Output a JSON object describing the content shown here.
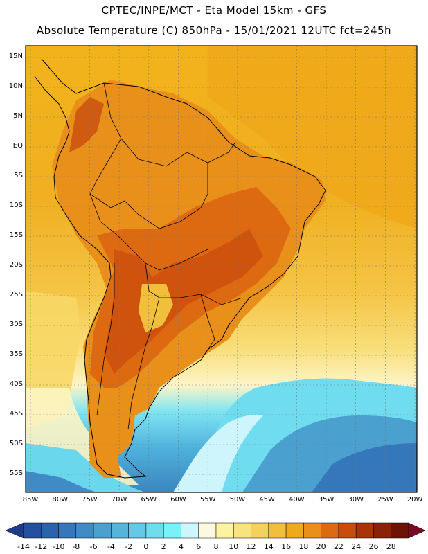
{
  "title_line1": "CPTEC/INPE/MCT -  Eta Model 15km - GFS",
  "title_line2": "Absolute Temperature (C) 850hPa - 15/01/2021 12UTC fct=245h",
  "variable": "Absolute Temperature",
  "units": "C",
  "level": "850hPa",
  "lat_labels": [
    "15N",
    "10N",
    "5N",
    "EQ",
    "5S",
    "10S",
    "15S",
    "20S",
    "25S",
    "30S",
    "35S",
    "40S",
    "45S",
    "50S",
    "55S"
  ],
  "lon_labels": [
    "85W",
    "80W",
    "75W",
    "70W",
    "65W",
    "60W",
    "55W",
    "50W",
    "45W",
    "40W",
    "35W",
    "30W",
    "25W",
    "20W"
  ],
  "colorbar": {
    "labels": [
      "-14",
      "-12",
      "-10",
      "-8",
      "-6",
      "-4",
      "-2",
      "0",
      "2",
      "4",
      "6",
      "8",
      "10",
      "12",
      "14",
      "16",
      "18",
      "20",
      "22",
      "24",
      "26",
      "28"
    ],
    "colors": [
      "#1e3c8c",
      "#22519f",
      "#2a63ad",
      "#3477bb",
      "#3f8bc6",
      "#4aa0cf",
      "#55b4da",
      "#63c9e6",
      "#6fdcef",
      "#78f2f8",
      "#cdf5fb",
      "#fff8e0",
      "#fbf3a0",
      "#f8e47e",
      "#f5d05c",
      "#f2bf3c",
      "#efaa1c",
      "#e8901a",
      "#dd6a10",
      "#c94c0c",
      "#a93409",
      "#8b2208",
      "#6e1206",
      "#7a0628"
    ]
  }
}
